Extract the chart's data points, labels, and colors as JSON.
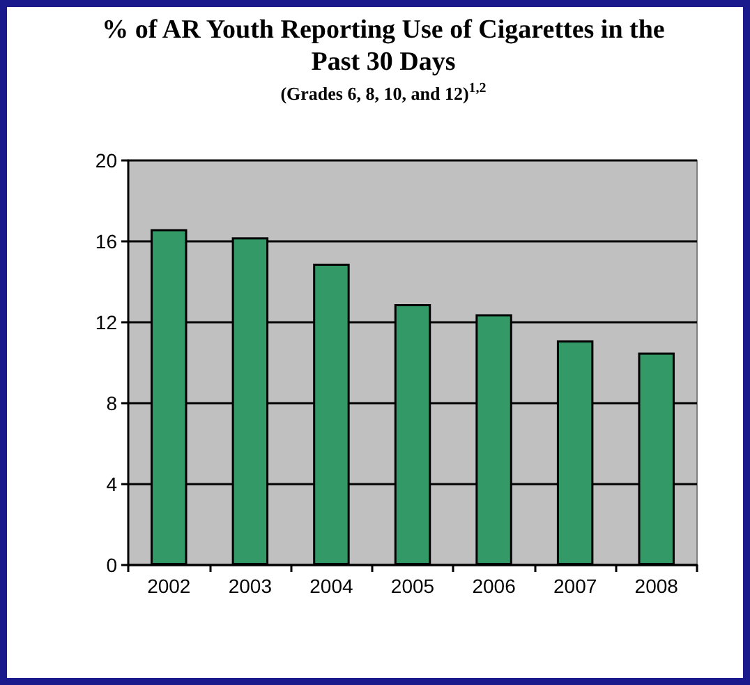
{
  "chart_data": {
    "type": "bar",
    "title": "% of AR Youth Reporting Use of Cigarettes in the Past 30 Days",
    "subtitle": "(Grades 6, 8, 10, and 12)$^{1,2}$",
    "categories": [
      "2002",
      "2003",
      "2004",
      "2005",
      "2006",
      "2007",
      "2008"
    ],
    "values": [
      16.6,
      16.2,
      14.9,
      12.9,
      12.4,
      11.1,
      10.5
    ],
    "color": "#339966",
    "ylim": [
      0,
      20
    ],
    "yticks": [
      0,
      4,
      8,
      12,
      16,
      20
    ],
    "grid": "y"
  }
}
